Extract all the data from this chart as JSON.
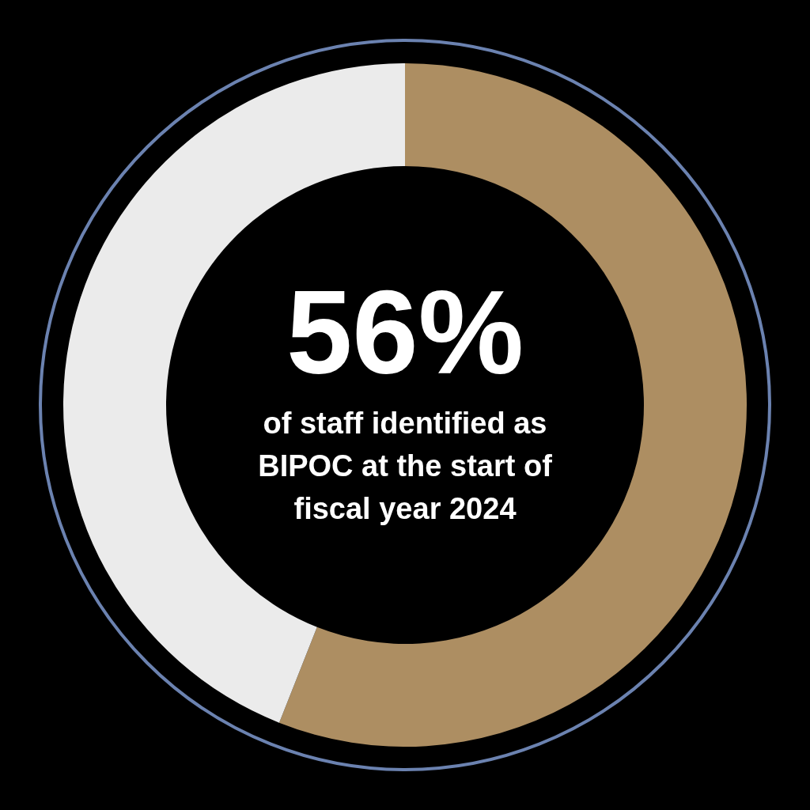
{
  "chart_data": {
    "type": "donut",
    "title": "56%",
    "subtitle": "of staff identified as BIPOC at the start of fiscal year 2024",
    "categories": [
      null,
      null
    ],
    "values": [
      56,
      44
    ],
    "colors": [
      "#ad8e62",
      "#ebebeb"
    ]
  }
}
